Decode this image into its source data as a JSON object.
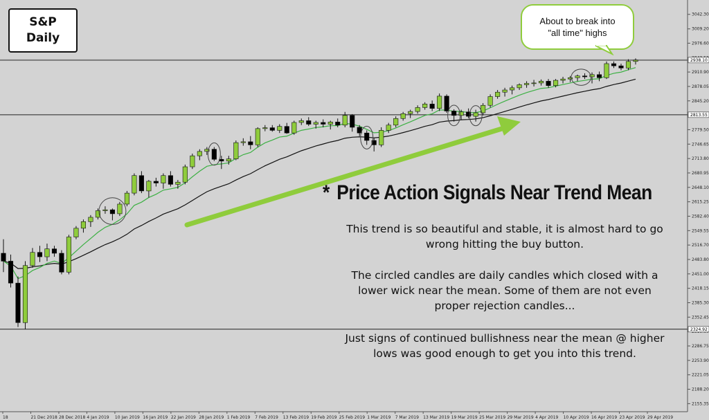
{
  "title": {
    "line1": "S&P",
    "line2": "Daily"
  },
  "callout": {
    "line1": "About to break into",
    "line2": "\"all time\" highs"
  },
  "heading": {
    "star": "*",
    "text": "Price Action Signals Near Trend Mean"
  },
  "paragraphs": {
    "p1_line1": "This trend is so beautiful and stable, it is almost hard to go",
    "p1_line2": "wrong hitting the buy button.",
    "p2_line1": "The circled candles are daily candles which closed with a",
    "p2_line2": "lower wick near the mean. Some of them are not even",
    "p2_line3": "proper rejection candles...",
    "p3_line1": "Just signs of continued bullishness near the mean @ higher",
    "p3_line2": "lows was good enough to get you into this trend."
  },
  "colors": {
    "background": "#d3d3d3",
    "bull_candle": "#8fcc3c",
    "bear_candle": "#000000",
    "fast_ma": "#3cb043",
    "slow_ma": "#111111",
    "arrow": "#8fcc3c"
  },
  "chart_data": {
    "type": "candlestick",
    "symbol": "S&P",
    "timeframe": "Daily",
    "ylim": [
      2137,
      3075
    ],
    "y_ticks": [
      3042.3,
      3009.2,
      2976.6,
      2943.5,
      2910.9,
      2878.05,
      2845.2,
      2812.4,
      2779.5,
      2746.65,
      2713.8,
      2680.95,
      2648.1,
      2615.25,
      2582.4,
      2549.55,
      2516.7,
      2483.8,
      2451.0,
      2418.15,
      2385.3,
      2352.45,
      2319.6,
      2286.75,
      2253.9,
      2221.05,
      2188.2,
      2155.35
    ],
    "x_labels": [
      "18",
      "21 Dec 2018",
      "28 Dec 2018",
      "4 Jan 2019",
      "10 Jan 2019",
      "16 Jan 2019",
      "22 Jan 2019",
      "28 Jan 2019",
      "1 Feb 2019",
      "7 Feb 2019",
      "13 Feb 2019",
      "19 Feb 2019",
      "25 Feb 2019",
      "1 Mar 2019",
      "7 Mar 2019",
      "13 Mar 2019",
      "19 Mar 2019",
      "25 Mar 2019",
      "29 Mar 2019",
      "4 Apr 2019",
      "10 Apr 2019",
      "16 Apr 2019",
      "23 Apr 2019",
      "29 Apr 2019"
    ],
    "horizontal_levels": [
      {
        "label": "2938.10",
        "value": 2938.1
      },
      {
        "label": "2813.55",
        "value": 2813.55
      },
      {
        "label": "2324.92",
        "value": 2324.92
      }
    ],
    "candles": [
      {
        "o": 2498,
        "h": 2530,
        "l": 2455,
        "c": 2480
      },
      {
        "o": 2480,
        "h": 2495,
        "l": 2420,
        "c": 2430
      },
      {
        "o": 2430,
        "h": 2445,
        "l": 2330,
        "c": 2340
      },
      {
        "o": 2340,
        "h": 2480,
        "l": 2325,
        "c": 2470
      },
      {
        "o": 2470,
        "h": 2510,
        "l": 2465,
        "c": 2500
      },
      {
        "o": 2500,
        "h": 2515,
        "l": 2478,
        "c": 2490
      },
      {
        "o": 2490,
        "h": 2520,
        "l": 2480,
        "c": 2508
      },
      {
        "o": 2508,
        "h": 2515,
        "l": 2490,
        "c": 2498
      },
      {
        "o": 2498,
        "h": 2505,
        "l": 2450,
        "c": 2455
      },
      {
        "o": 2455,
        "h": 2540,
        "l": 2450,
        "c": 2535
      },
      {
        "o": 2535,
        "h": 2560,
        "l": 2530,
        "c": 2555
      },
      {
        "o": 2555,
        "h": 2575,
        "l": 2545,
        "c": 2570
      },
      {
        "o": 2570,
        "h": 2585,
        "l": 2558,
        "c": 2580
      },
      {
        "o": 2580,
        "h": 2600,
        "l": 2575,
        "c": 2595
      },
      {
        "o": 2595,
        "h": 2605,
        "l": 2588,
        "c": 2597
      },
      {
        "o": 2597,
        "h": 2600,
        "l": 2573,
        "c": 2588
      },
      {
        "o": 2588,
        "h": 2615,
        "l": 2583,
        "c": 2610
      },
      {
        "o": 2610,
        "h": 2640,
        "l": 2605,
        "c": 2635
      },
      {
        "o": 2635,
        "h": 2680,
        "l": 2630,
        "c": 2675
      },
      {
        "o": 2675,
        "h": 2685,
        "l": 2635,
        "c": 2640
      },
      {
        "o": 2640,
        "h": 2665,
        "l": 2625,
        "c": 2662
      },
      {
        "o": 2662,
        "h": 2670,
        "l": 2650,
        "c": 2658
      },
      {
        "o": 2658,
        "h": 2680,
        "l": 2645,
        "c": 2675
      },
      {
        "o": 2675,
        "h": 2685,
        "l": 2650,
        "c": 2655
      },
      {
        "o": 2655,
        "h": 2665,
        "l": 2645,
        "c": 2660
      },
      {
        "o": 2660,
        "h": 2700,
        "l": 2655,
        "c": 2695
      },
      {
        "o": 2695,
        "h": 2725,
        "l": 2690,
        "c": 2720
      },
      {
        "o": 2720,
        "h": 2735,
        "l": 2710,
        "c": 2730
      },
      {
        "o": 2730,
        "h": 2740,
        "l": 2722,
        "c": 2735
      },
      {
        "o": 2735,
        "h": 2740,
        "l": 2708,
        "c": 2712
      },
      {
        "o": 2712,
        "h": 2720,
        "l": 2690,
        "c": 2708
      },
      {
        "o": 2708,
        "h": 2720,
        "l": 2700,
        "c": 2713
      },
      {
        "o": 2713,
        "h": 2755,
        "l": 2710,
        "c": 2750
      },
      {
        "o": 2750,
        "h": 2760,
        "l": 2743,
        "c": 2752
      },
      {
        "o": 2752,
        "h": 2765,
        "l": 2735,
        "c": 2745
      },
      {
        "o": 2745,
        "h": 2785,
        "l": 2740,
        "c": 2782
      },
      {
        "o": 2782,
        "h": 2790,
        "l": 2776,
        "c": 2784
      },
      {
        "o": 2784,
        "h": 2790,
        "l": 2775,
        "c": 2778
      },
      {
        "o": 2778,
        "h": 2792,
        "l": 2772,
        "c": 2787
      },
      {
        "o": 2787,
        "h": 2795,
        "l": 2770,
        "c": 2772
      },
      {
        "o": 2772,
        "h": 2800,
        "l": 2768,
        "c": 2796
      },
      {
        "o": 2796,
        "h": 2805,
        "l": 2790,
        "c": 2800
      },
      {
        "o": 2800,
        "h": 2808,
        "l": 2788,
        "c": 2792
      },
      {
        "o": 2792,
        "h": 2800,
        "l": 2782,
        "c": 2796
      },
      {
        "o": 2796,
        "h": 2803,
        "l": 2785,
        "c": 2792
      },
      {
        "o": 2792,
        "h": 2800,
        "l": 2780,
        "c": 2797
      },
      {
        "o": 2797,
        "h": 2805,
        "l": 2785,
        "c": 2790
      },
      {
        "o": 2790,
        "h": 2820,
        "l": 2785,
        "c": 2812
      },
      {
        "o": 2812,
        "h": 2815,
        "l": 2775,
        "c": 2785
      },
      {
        "o": 2785,
        "h": 2790,
        "l": 2765,
        "c": 2772
      },
      {
        "o": 2772,
        "h": 2778,
        "l": 2745,
        "c": 2755
      },
      {
        "o": 2755,
        "h": 2760,
        "l": 2730,
        "c": 2745
      },
      {
        "o": 2745,
        "h": 2785,
        "l": 2740,
        "c": 2778
      },
      {
        "o": 2778,
        "h": 2795,
        "l": 2772,
        "c": 2790
      },
      {
        "o": 2790,
        "h": 2810,
        "l": 2785,
        "c": 2805
      },
      {
        "o": 2805,
        "h": 2820,
        "l": 2800,
        "c": 2816
      },
      {
        "o": 2816,
        "h": 2825,
        "l": 2806,
        "c": 2821
      },
      {
        "o": 2821,
        "h": 2835,
        "l": 2816,
        "c": 2830
      },
      {
        "o": 2830,
        "h": 2842,
        "l": 2825,
        "c": 2838
      },
      {
        "o": 2838,
        "h": 2846,
        "l": 2822,
        "c": 2828
      },
      {
        "o": 2828,
        "h": 2862,
        "l": 2822,
        "c": 2856
      },
      {
        "o": 2856,
        "h": 2860,
        "l": 2818,
        "c": 2822
      },
      {
        "o": 2822,
        "h": 2826,
        "l": 2798,
        "c": 2812
      },
      {
        "o": 2812,
        "h": 2825,
        "l": 2802,
        "c": 2820
      },
      {
        "o": 2820,
        "h": 2828,
        "l": 2805,
        "c": 2810
      },
      {
        "o": 2810,
        "h": 2825,
        "l": 2798,
        "c": 2818
      },
      {
        "o": 2818,
        "h": 2840,
        "l": 2812,
        "c": 2835
      },
      {
        "o": 2835,
        "h": 2860,
        "l": 2830,
        "c": 2855
      },
      {
        "o": 2855,
        "h": 2870,
        "l": 2850,
        "c": 2865
      },
      {
        "o": 2865,
        "h": 2875,
        "l": 2855,
        "c": 2870
      },
      {
        "o": 2870,
        "h": 2880,
        "l": 2860,
        "c": 2875
      },
      {
        "o": 2875,
        "h": 2885,
        "l": 2870,
        "c": 2882
      },
      {
        "o": 2882,
        "h": 2890,
        "l": 2875,
        "c": 2885
      },
      {
        "o": 2885,
        "h": 2893,
        "l": 2878,
        "c": 2886
      },
      {
        "o": 2886,
        "h": 2894,
        "l": 2880,
        "c": 2890
      },
      {
        "o": 2890,
        "h": 2895,
        "l": 2875,
        "c": 2880
      },
      {
        "o": 2880,
        "h": 2895,
        "l": 2876,
        "c": 2892
      },
      {
        "o": 2892,
        "h": 2900,
        "l": 2885,
        "c": 2895
      },
      {
        "o": 2895,
        "h": 2902,
        "l": 2888,
        "c": 2898
      },
      {
        "o": 2898,
        "h": 2905,
        "l": 2890,
        "c": 2902
      },
      {
        "o": 2902,
        "h": 2908,
        "l": 2895,
        "c": 2900
      },
      {
        "o": 2900,
        "h": 2910,
        "l": 2885,
        "c": 2905
      },
      {
        "o": 2905,
        "h": 2912,
        "l": 2890,
        "c": 2898
      },
      {
        "o": 2898,
        "h": 2935,
        "l": 2895,
        "c": 2930
      },
      {
        "o": 2930,
        "h": 2935,
        "l": 2920,
        "c": 2925
      },
      {
        "o": 2925,
        "h": 2930,
        "l": 2915,
        "c": 2920
      },
      {
        "o": 2920,
        "h": 2940,
        "l": 2915,
        "c": 2935
      },
      {
        "o": 2935,
        "h": 2942,
        "l": 2928,
        "c": 2938
      }
    ],
    "fast_ma_endpoints": [
      2560,
      2915
    ],
    "slow_ma_endpoints": [
      2655,
      2900
    ]
  }
}
